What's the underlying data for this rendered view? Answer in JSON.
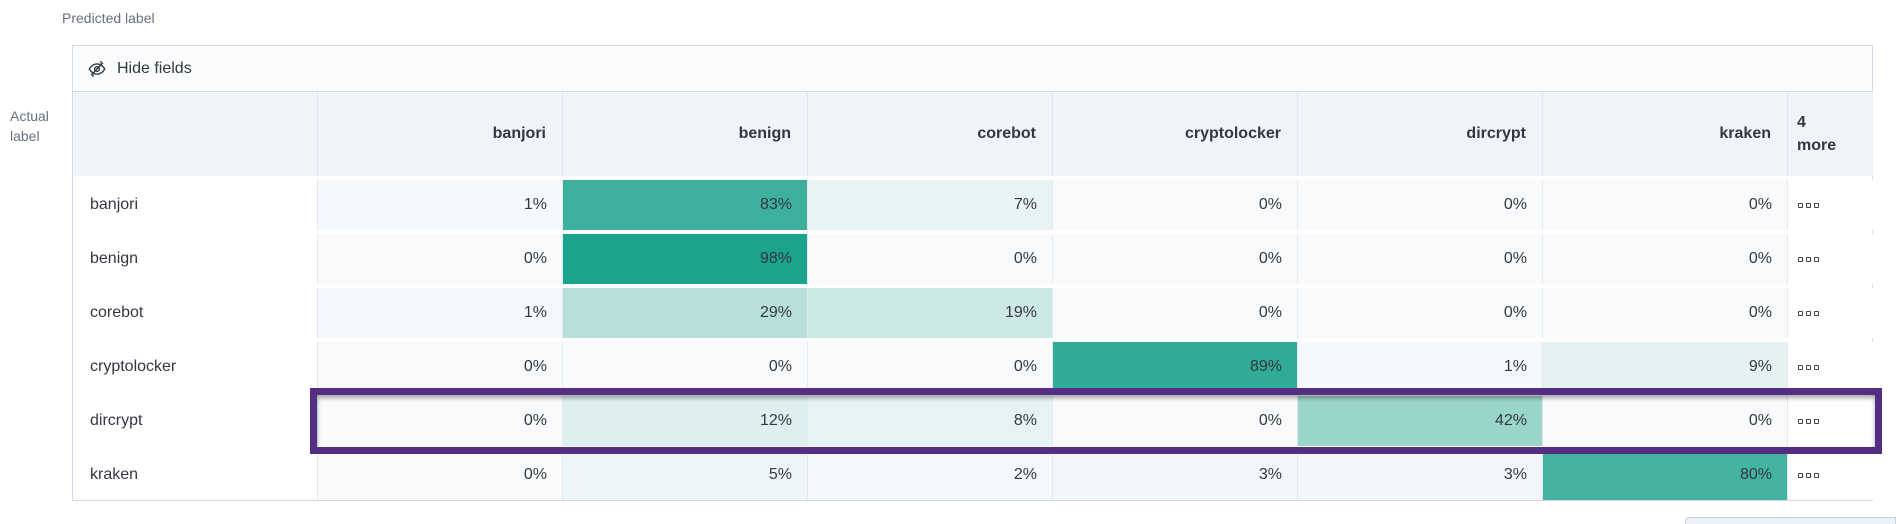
{
  "page": {
    "predicted_label": "Predicted label",
    "actual_label": "Actual label",
    "hide_fields_button": "Hide fields"
  },
  "colors": {
    "heat_low": "#f8fafc",
    "heat_high": "#17a189",
    "header_bg": "#f0f3f8",
    "border": "#d3dae6",
    "text_dark": "#343741",
    "text_gray": "#69707d",
    "highlight_purple": "#542e82"
  },
  "chart_data": {
    "type": "heatmap",
    "columns": [
      "banjori",
      "benign",
      "corebot",
      "cryptolocker",
      "dircrypt",
      "kraken"
    ],
    "extra_columns_header": "4 more",
    "rows": [
      "banjori",
      "benign",
      "corebot",
      "cryptolocker",
      "dircrypt",
      "kraken"
    ],
    "values_percent": [
      [
        1,
        83,
        7,
        0,
        0,
        0
      ],
      [
        0,
        98,
        0,
        0,
        0,
        0
      ],
      [
        1,
        29,
        19,
        0,
        0,
        0
      ],
      [
        0,
        0,
        0,
        89,
        1,
        9
      ],
      [
        0,
        12,
        8,
        0,
        42,
        0
      ],
      [
        0,
        5,
        2,
        3,
        3,
        80
      ]
    ],
    "value_suffix": "%",
    "highlighted_row": "dircrypt",
    "legend": "cells shaded light-to-teal by percentage"
  }
}
